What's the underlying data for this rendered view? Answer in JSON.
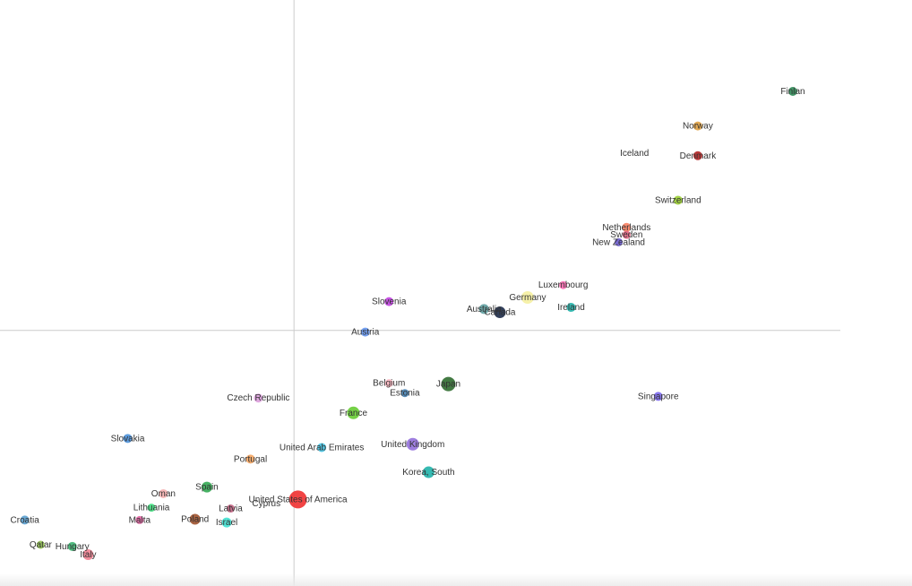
{
  "chart_data": {
    "type": "scatter",
    "title": "",
    "xlabel": "",
    "ylabel": "",
    "xlim": [
      -3.6,
      6.9
    ],
    "ylim": [
      -3.1,
      3.9
    ],
    "crosshair_at": [
      0,
      0
    ],
    "grid": false,
    "legend": "none",
    "points": [
      {
        "label": "Finlan",
        "x": 6.3,
        "y": 2.9,
        "size": 6,
        "color": "#2e8b57"
      },
      {
        "label": "Norway",
        "x": 5.1,
        "y": 2.48,
        "size": 6,
        "color": "#e0a040"
      },
      {
        "label": "Iceland",
        "x": 4.3,
        "y": 2.15,
        "size": 0,
        "color": "#888888"
      },
      {
        "label": "Denmark",
        "x": 5.1,
        "y": 2.12,
        "size": 6,
        "color": "#b22222"
      },
      {
        "label": "Switzerland",
        "x": 4.85,
        "y": 1.58,
        "size": 6,
        "color": "#9acd32"
      },
      {
        "label": "Netherlands",
        "x": 4.2,
        "y": 1.25,
        "size": 6,
        "color": "#fa8060"
      },
      {
        "label": "Sweden",
        "x": 4.2,
        "y": 1.16,
        "size": 5,
        "color": "#e06080"
      },
      {
        "label": "New Zealand",
        "x": 4.1,
        "y": 1.07,
        "size": 5,
        "color": "#6a5acd"
      },
      {
        "label": "Luxembourg",
        "x": 3.4,
        "y": 0.55,
        "size": 5,
        "color": "#ff69b4"
      },
      {
        "label": "Germany",
        "x": 2.95,
        "y": 0.4,
        "size": 10,
        "color": "#f5f0a0"
      },
      {
        "label": "Ireland",
        "x": 3.5,
        "y": 0.28,
        "size": 6,
        "color": "#20b2aa"
      },
      {
        "label": "Australia",
        "x": 2.4,
        "y": 0.26,
        "size": 7,
        "color": "#5f9ea0"
      },
      {
        "label": "Canada",
        "x": 2.6,
        "y": 0.22,
        "size": 9,
        "color": "#1c2a48"
      },
      {
        "label": "Slovenia",
        "x": 1.2,
        "y": 0.35,
        "size": 6,
        "color": "#c040e0"
      },
      {
        "label": "Austria",
        "x": 0.9,
        "y": -0.02,
        "size": 6,
        "color": "#6495ed"
      },
      {
        "label": "Japan",
        "x": 1.95,
        "y": -0.65,
        "size": 12,
        "color": "#2f6b2f"
      },
      {
        "label": "Belgium",
        "x": 1.2,
        "y": -0.64,
        "size": 5,
        "color": "#ffb6c1"
      },
      {
        "label": "Estonia",
        "x": 1.4,
        "y": -0.76,
        "size": 5,
        "color": "#4682b4"
      },
      {
        "label": "Singapore",
        "x": 4.6,
        "y": -0.8,
        "size": 6,
        "color": "#7b68ee"
      },
      {
        "label": "Czech Republic",
        "x": -0.45,
        "y": -0.82,
        "size": 6,
        "color": "#dda0dd"
      },
      {
        "label": "France",
        "x": 0.75,
        "y": -1.0,
        "size": 10,
        "color": "#66cc33"
      },
      {
        "label": "Slovakia",
        "x": -2.1,
        "y": -1.31,
        "size": 6,
        "color": "#4a90d9"
      },
      {
        "label": "United Arab Emirates",
        "x": 0.35,
        "y": -1.42,
        "size": 6,
        "color": "#40c0e0"
      },
      {
        "label": "United Kingdom",
        "x": 1.5,
        "y": -1.38,
        "size": 10,
        "color": "#9370db"
      },
      {
        "label": "Portugal",
        "x": -0.55,
        "y": -1.56,
        "size": 6,
        "color": "#f4a460"
      },
      {
        "label": "Korea, South",
        "x": 1.7,
        "y": -1.72,
        "size": 9,
        "color": "#20b2aa"
      },
      {
        "label": "Spain",
        "x": -1.1,
        "y": -1.9,
        "size": 8,
        "color": "#32a852"
      },
      {
        "label": "Oman",
        "x": -1.65,
        "y": -1.98,
        "size": 6,
        "color": "#f5b0b0"
      },
      {
        "label": "United States of America",
        "x": 0.05,
        "y": -2.05,
        "size": 16,
        "color": "#f03030"
      },
      {
        "label": "Lithuania",
        "x": -1.8,
        "y": -2.15,
        "size": 5,
        "color": "#40e080"
      },
      {
        "label": "Latvia",
        "x": -0.8,
        "y": -2.16,
        "size": 5,
        "color": "#c06080"
      },
      {
        "label": "Cyprus",
        "x": -0.35,
        "y": -2.1,
        "size": 0,
        "color": "#888888"
      },
      {
        "label": "Poland",
        "x": -1.25,
        "y": -2.29,
        "size": 8,
        "color": "#a0522d"
      },
      {
        "label": "Malta",
        "x": -1.95,
        "y": -2.3,
        "size": 5,
        "color": "#e060a0"
      },
      {
        "label": "Israel",
        "x": -0.85,
        "y": -2.33,
        "size": 7,
        "color": "#40e0d0"
      },
      {
        "label": "Croatia",
        "x": -3.4,
        "y": -2.3,
        "size": 6,
        "color": "#5aa0d0"
      },
      {
        "label": "Qatar",
        "x": -3.2,
        "y": -2.6,
        "size": 5,
        "color": "#90c050"
      },
      {
        "label": "Hungary",
        "x": -2.8,
        "y": -2.62,
        "size": 6,
        "color": "#3cb371"
      },
      {
        "label": "Italy",
        "x": -2.6,
        "y": -2.72,
        "size": 8,
        "color": "#f08090"
      }
    ]
  }
}
